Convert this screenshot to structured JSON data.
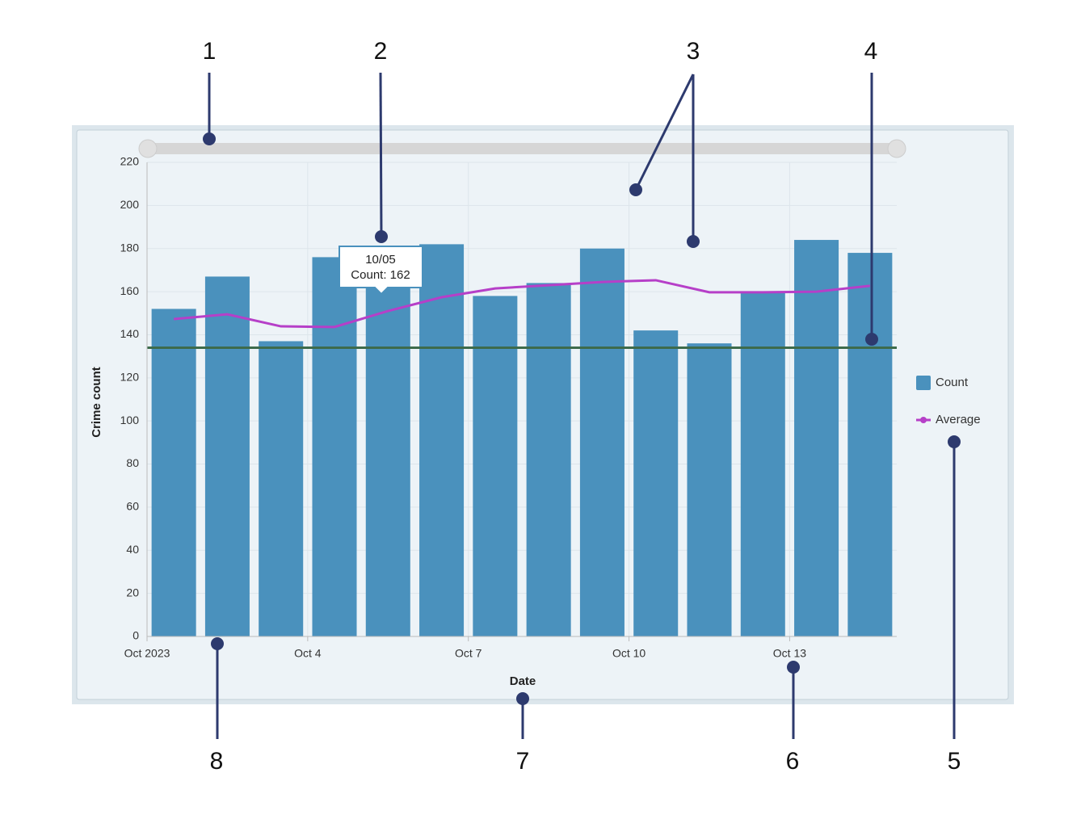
{
  "chart_data": {
    "type": "bar",
    "x_label": "Date",
    "y_label": "Crime count",
    "x": [
      1,
      2,
      3,
      4,
      5,
      6,
      7,
      8,
      9,
      10,
      11,
      12,
      13,
      14
    ],
    "xlim": [
      1,
      15
    ],
    "xticks": [
      {
        "value": 1,
        "label": "Oct 2023"
      },
      {
        "value": 4,
        "label": "Oct 4"
      },
      {
        "value": 7,
        "label": "Oct 7"
      },
      {
        "value": 10,
        "label": "Oct 10"
      },
      {
        "value": 13,
        "label": "Oct 13"
      }
    ],
    "ylim": [
      0,
      220
    ],
    "yticks": [
      0,
      20,
      40,
      60,
      80,
      100,
      120,
      140,
      160,
      180,
      200,
      220
    ],
    "grid": true,
    "legend": "right",
    "series": [
      {
        "name": "Count",
        "type": "bar",
        "color": "#4a91bd",
        "values": [
          152,
          167,
          137,
          176,
          162,
          182,
          158,
          164,
          180,
          142,
          136,
          160,
          184,
          178
        ]
      },
      {
        "name": "Average",
        "type": "line",
        "color": "#b63fc8",
        "values": [
          147.3,
          149.5,
          143.9,
          143.6,
          151,
          157.4,
          161.5,
          163,
          164.5,
          165.3,
          159.7,
          159.7,
          160,
          162.7
        ]
      }
    ],
    "reference_line": {
      "value": 134,
      "color": "#3d6b4c"
    },
    "tooltip": {
      "title": "10/05",
      "text": "Count: 162"
    }
  },
  "callouts": [
    "1",
    "2",
    "3",
    "4",
    "5",
    "6",
    "7",
    "8"
  ]
}
